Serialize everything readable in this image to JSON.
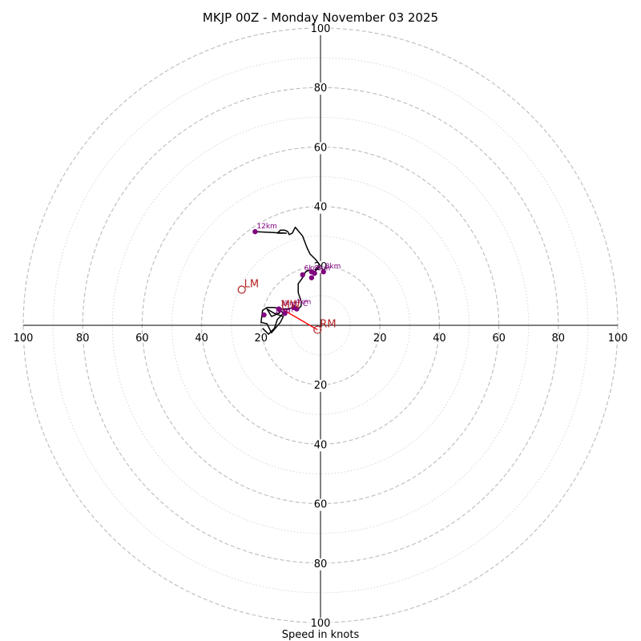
{
  "chart_data": {
    "type": "hodograph",
    "title": "MKJP 00Z - Monday November 03 2025",
    "xlabel": "Speed in knots",
    "speed_max": 100,
    "ring_values": [
      20,
      40,
      60,
      80,
      100
    ],
    "tick_labels": [
      "100",
      "80",
      "60",
      "40",
      "20",
      "20",
      "40",
      "60",
      "80",
      "100"
    ],
    "colors": {
      "hodograph_line": "#000000",
      "height_markers": "#800080",
      "storm_motion": "#b22222",
      "shear_vector": "#ff0000",
      "major_ring": "#bbbbbb",
      "minor_ring": "#d3d3d3"
    },
    "hodograph_trace": [
      [
        -19.5,
        -1.0
      ],
      [
        -17.5,
        -3.0
      ],
      [
        -15.5,
        -1.0
      ],
      [
        -14.5,
        2.0
      ],
      [
        -12.5,
        4.0
      ],
      [
        -13.5,
        5.0
      ],
      [
        -14.0,
        4.0
      ],
      [
        -16.5,
        3.0
      ],
      [
        -18.0,
        5.5
      ],
      [
        -15.5,
        4.0
      ],
      [
        -12.5,
        3.0
      ],
      [
        -13.5,
        1.0
      ],
      [
        -16.5,
        -2.5
      ],
      [
        -18.0,
        0.5
      ],
      [
        -20.0,
        1.0
      ],
      [
        -19.5,
        5.0
      ],
      [
        -18.0,
        6.0
      ],
      [
        -15.5,
        6.0
      ],
      [
        -13.0,
        5.5
      ],
      [
        -11.0,
        5.5
      ],
      [
        -9.0,
        6.0
      ],
      [
        -7.5,
        5.5
      ],
      [
        -6.5,
        6.5
      ],
      [
        -6.5,
        8.0
      ],
      [
        -7.5,
        11.0
      ],
      [
        -7.5,
        14.0
      ],
      [
        -6.0,
        16.0
      ],
      [
        -5.0,
        18.0
      ],
      [
        -4.0,
        18.5
      ],
      [
        -2.0,
        18.0
      ],
      [
        0,
        20.0
      ],
      [
        -1.5,
        22.0
      ],
      [
        -3.5,
        24.0
      ],
      [
        -4.5,
        26.0
      ],
      [
        -6.0,
        30.0
      ],
      [
        -8.5,
        33.0
      ],
      [
        -9.5,
        31.0
      ],
      [
        -10.5,
        30.5
      ],
      [
        -11.0,
        31.5
      ],
      [
        -12.0,
        32.0
      ],
      [
        -13.5,
        32.0
      ],
      [
        -14.5,
        31.0
      ],
      [
        -11.5,
        31.0
      ],
      [
        -22.0,
        31.5
      ]
    ],
    "height_markers": [
      {
        "label": "",
        "u": -19.0,
        "v": 3.5
      },
      {
        "label": "3km",
        "u": -14.0,
        "v": 5.5
      },
      {
        "label": "",
        "u": -12.0,
        "v": 4.0
      },
      {
        "label": "4km",
        "u": -9.0,
        "v": 6.0
      },
      {
        "label": "",
        "u": -8.0,
        "v": 5.5
      },
      {
        "label": "",
        "u": -6.0,
        "v": 17.0
      },
      {
        "label": "",
        "u": -3.0,
        "v": 18.0
      },
      {
        "label": "",
        "u": -2.0,
        "v": 17.5
      },
      {
        "label": "8km",
        "u": 1.0,
        "v": 18.0
      },
      {
        "label": "",
        "u": -3.0,
        "v": 16.0
      },
      {
        "label": "12km",
        "u": -22.0,
        "v": 31.5
      }
    ],
    "extra_labels": [
      {
        "text": "1km",
        "u": -15.5,
        "v": 4.0
      },
      {
        "text": "2km",
        "u": -14.5,
        "v": 4.5
      },
      {
        "text": "C",
        "u": -6.0,
        "v": 6.5
      },
      {
        "text": "6km",
        "u": -5.5,
        "v": 18.5
      },
      {
        "text": "7km",
        "u": -2.0,
        "v": 18.5
      }
    ],
    "storm_motion": {
      "LM": {
        "label": "LM",
        "u": -26.5,
        "v": 12.0
      },
      "RM": {
        "label": "RM",
        "u": -1.0,
        "v": -1.5
      },
      "MW": {
        "label": "MW",
        "u": -13.0,
        "v": 5.5
      }
    },
    "shear_vector": {
      "from": [
        -13.0,
        5.5
      ],
      "to": [
        -1.0,
        -1.5
      ]
    }
  }
}
